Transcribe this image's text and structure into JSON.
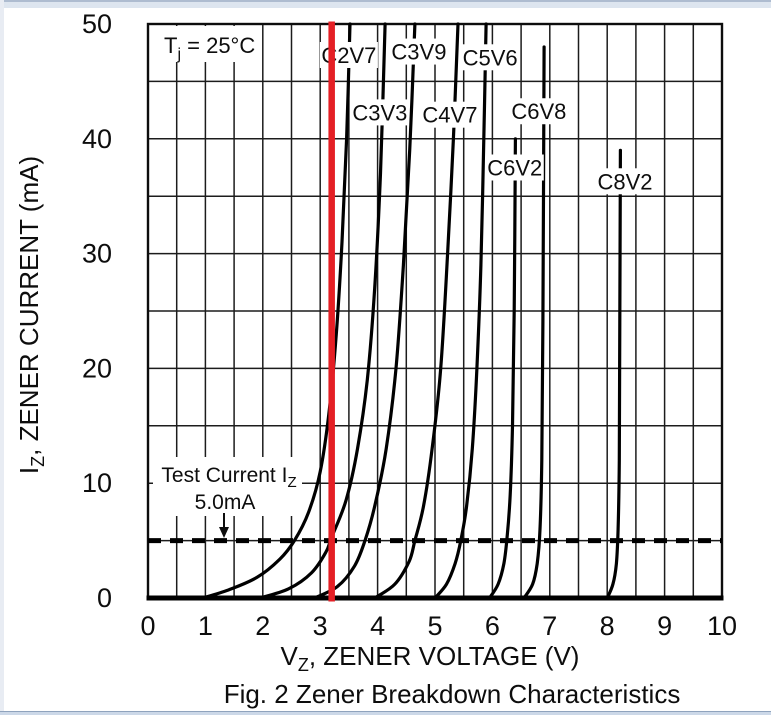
{
  "page": {
    "background": "#ffffff",
    "edge_color_dark": "#aebcd0",
    "edge_color_light": "#dde5ef"
  },
  "chart_data": {
    "type": "line",
    "title": "Fig. 2  Zener Breakdown Characteristics",
    "xlabel": "VZ, ZENER VOLTAGE (V)",
    "ylabel": "IZ, ZENER CURRENT (mA)",
    "x_title_parts": {
      "pre": "V",
      "sub": "Z",
      "post": ", ZENER VOLTAGE (V)"
    },
    "y_title_parts": {
      "pre": "I",
      "sub": "Z",
      "post": ", ZENER CURRENT (mA)"
    },
    "xlim": [
      0,
      10
    ],
    "ylim": [
      0,
      50
    ],
    "x_ticks": [
      0,
      1,
      2,
      3,
      4,
      5,
      6,
      7,
      8,
      9,
      10
    ],
    "y_ticks": [
      0,
      10,
      20,
      30,
      40,
      50
    ],
    "x_grid_step": 0.5,
    "y_grid_step": 5,
    "grid": true,
    "legend_position": "none",
    "line_color": "#000000",
    "grid_color": "#1c1c1c",
    "temperature_label_parts": {
      "pre": "T",
      "sub": "j",
      "post": " = 25°C"
    },
    "test_current": {
      "y_ma": 5.0,
      "label_parts": {
        "pre": "Test Current I",
        "sub": "Z"
      },
      "value_label": "5.0mA"
    },
    "red_marker": {
      "x_v": 3.2,
      "color": "#e41f25"
    },
    "series": [
      {
        "name": "C2V7",
        "label_pos": [
          3.5,
          47.3
        ],
        "points": [
          [
            0.95,
            0
          ],
          [
            1.4,
            0.7
          ],
          [
            1.9,
            1.8
          ],
          [
            2.3,
            3.4
          ],
          [
            2.55,
            5
          ],
          [
            2.8,
            7.5
          ],
          [
            3.0,
            11
          ],
          [
            3.15,
            16
          ],
          [
            3.28,
            23
          ],
          [
            3.38,
            31
          ],
          [
            3.46,
            40
          ],
          [
            3.52,
            50
          ]
        ]
      },
      {
        "name": "C3V3",
        "label_pos": [
          4.04,
          42.3
        ],
        "points": [
          [
            1.95,
            0
          ],
          [
            2.45,
            0.8
          ],
          [
            2.85,
            2.2
          ],
          [
            3.1,
            4
          ],
          [
            3.2,
            5.3
          ],
          [
            3.45,
            8.5
          ],
          [
            3.65,
            13
          ],
          [
            3.82,
            19
          ],
          [
            3.95,
            27
          ],
          [
            4.05,
            37
          ],
          [
            4.13,
            50
          ]
        ]
      },
      {
        "name": "C3V9",
        "label_pos": [
          4.72,
          47.6
        ],
        "points": [
          [
            2.9,
            0
          ],
          [
            3.3,
            1
          ],
          [
            3.6,
            2.8
          ],
          [
            3.78,
            5
          ],
          [
            3.95,
            8
          ],
          [
            4.15,
            13
          ],
          [
            4.32,
            20
          ],
          [
            4.45,
            29
          ],
          [
            4.56,
            39
          ],
          [
            4.65,
            50
          ]
        ]
      },
      {
        "name": "C4V7",
        "label_pos": [
          5.26,
          42.1
        ],
        "points": [
          [
            3.95,
            0
          ],
          [
            4.3,
            1.2
          ],
          [
            4.55,
            3.2
          ],
          [
            4.65,
            5
          ],
          [
            4.8,
            8
          ],
          [
            4.95,
            13
          ],
          [
            5.1,
            20
          ],
          [
            5.22,
            30
          ],
          [
            5.32,
            40
          ],
          [
            5.4,
            50
          ]
        ]
      },
      {
        "name": "C5V6",
        "label_pos": [
          5.96,
          47.1
        ],
        "points": [
          [
            5.0,
            0
          ],
          [
            5.2,
            1.2
          ],
          [
            5.35,
            3
          ],
          [
            5.45,
            5
          ],
          [
            5.55,
            8
          ],
          [
            5.65,
            13
          ],
          [
            5.73,
            20
          ],
          [
            5.8,
            29
          ],
          [
            5.85,
            40
          ],
          [
            5.89,
            50
          ]
        ]
      },
      {
        "name": "C6V2",
        "label_pos": [
          6.39,
          37.5
        ],
        "points": [
          [
            5.95,
            0
          ],
          [
            6.1,
            1.2
          ],
          [
            6.2,
            3
          ],
          [
            6.26,
            5.5
          ],
          [
            6.31,
            9
          ],
          [
            6.35,
            15
          ],
          [
            6.38,
            25
          ],
          [
            6.4,
            40
          ]
        ]
      },
      {
        "name": "C6V8",
        "label_pos": [
          6.81,
          42.4
        ],
        "points": [
          [
            6.55,
            0
          ],
          [
            6.7,
            1.2
          ],
          [
            6.78,
            3
          ],
          [
            6.83,
            6
          ],
          [
            6.86,
            12
          ],
          [
            6.88,
            24
          ],
          [
            6.9,
            48
          ]
        ]
      },
      {
        "name": "C8V2",
        "label_pos": [
          8.31,
          36.3
        ],
        "points": [
          [
            8.0,
            0
          ],
          [
            8.1,
            1.2
          ],
          [
            8.16,
            3
          ],
          [
            8.19,
            6
          ],
          [
            8.21,
            12
          ],
          [
            8.22,
            24
          ],
          [
            8.23,
            39
          ]
        ]
      }
    ]
  }
}
